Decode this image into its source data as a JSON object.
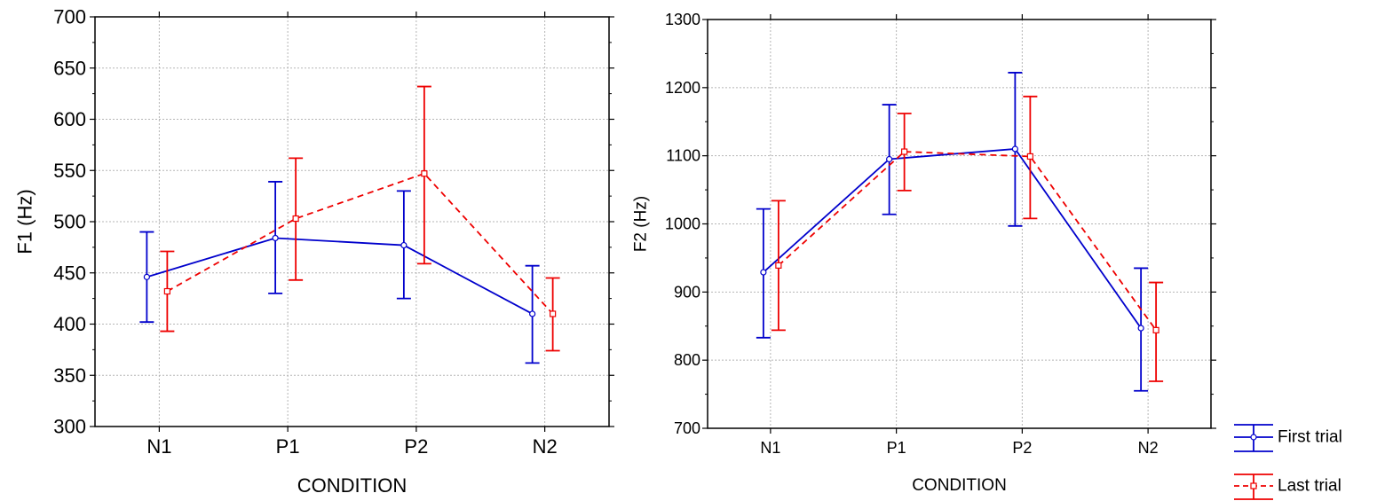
{
  "legend": {
    "position": "bottom-right",
    "entries": [
      {
        "label": "First trial",
        "color": "#0000cc",
        "marker": "circle",
        "line": "solid"
      },
      {
        "label": "Last trial",
        "color": "#ee0000",
        "marker": "square",
        "line": "dashed"
      }
    ]
  },
  "chart_data": [
    {
      "type": "line",
      "title": "",
      "xlabel": "CONDITION",
      "ylabel": "F1 (Hz)",
      "categories": [
        "N1",
        "P1",
        "P2",
        "N2"
      ],
      "ylim": [
        300,
        700
      ],
      "yticks": [
        300,
        350,
        400,
        450,
        500,
        550,
        600,
        650,
        700
      ],
      "grid": true,
      "series": [
        {
          "name": "First trial",
          "color": "#0000cc",
          "marker": "circle",
          "line": "solid",
          "values": [
            446,
            484,
            477,
            410
          ],
          "lower": [
            402,
            430,
            425,
            362
          ],
          "upper": [
            490,
            539,
            530,
            457
          ]
        },
        {
          "name": "Last trial",
          "color": "#ee0000",
          "marker": "square",
          "line": "dashed",
          "values": [
            432,
            503,
            547,
            410
          ],
          "lower": [
            393,
            443,
            459,
            374
          ],
          "upper": [
            471,
            562,
            632,
            445
          ]
        }
      ]
    },
    {
      "type": "line",
      "title": "",
      "xlabel": "CONDITION",
      "ylabel": "F2 (Hz)",
      "categories": [
        "N1",
        "P1",
        "P2",
        "N2"
      ],
      "ylim": [
        700,
        1300
      ],
      "yticks": [
        700,
        800,
        900,
        1000,
        1100,
        1200,
        1300
      ],
      "grid": true,
      "series": [
        {
          "name": "First trial",
          "color": "#0000cc",
          "marker": "circle",
          "line": "solid",
          "values": [
            929,
            1095,
            1110,
            847
          ],
          "lower": [
            833,
            1014,
            997,
            755
          ],
          "upper": [
            1022,
            1175,
            1222,
            935
          ]
        },
        {
          "name": "Last trial",
          "color": "#ee0000",
          "marker": "square",
          "line": "dashed",
          "values": [
            939,
            1106,
            1099,
            844
          ],
          "lower": [
            844,
            1049,
            1008,
            769
          ],
          "upper": [
            1034,
            1162,
            1187,
            914
          ]
        }
      ]
    }
  ]
}
